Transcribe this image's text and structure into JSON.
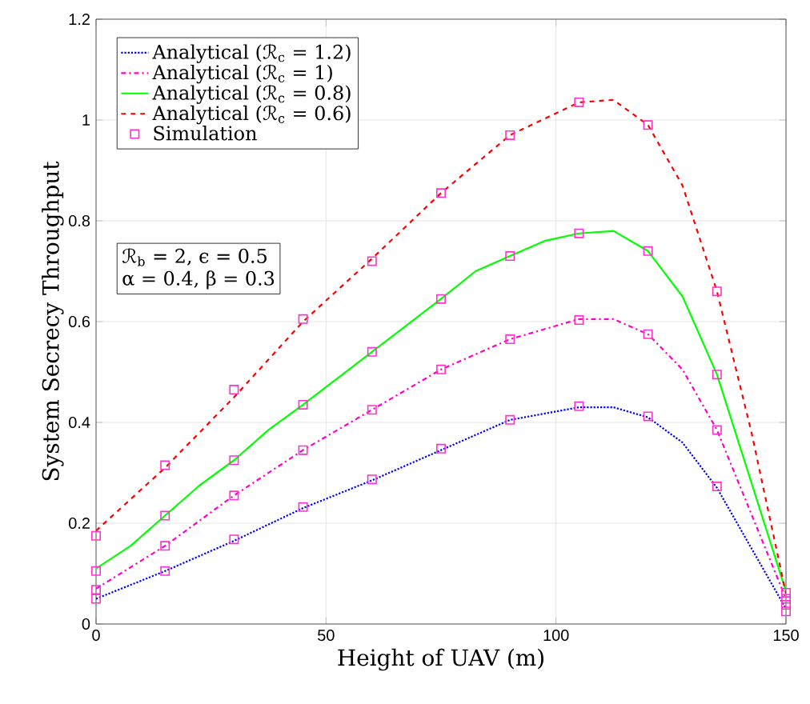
{
  "chart_data": {
    "type": "line",
    "xlabel": "Height of UAV (m)",
    "ylabel": "System Secrecy Throughput",
    "xlim": [
      0,
      150
    ],
    "xticks": [
      0,
      50,
      100,
      150
    ],
    "ylim": [
      0,
      1.2
    ],
    "yticks": [
      0,
      0.2,
      0.4,
      0.6,
      0.8,
      1,
      1.2
    ],
    "grid": true,
    "legend": "top left",
    "annotations": [
      "ℛ$_{b}$ = 2, ϵ = 0.5",
      "α = 0.4, β = 0.3"
    ],
    "series": [
      {
        "name": "Analytical (ℛ$_{c}$ = 1.2)",
        "color": "#0000ff",
        "line_style": "dotted",
        "x": [
          0,
          15,
          30,
          45,
          60,
          75,
          90,
          105,
          112.5,
          120,
          127.5,
          135,
          150
        ],
        "values": [
          0.05,
          0.105,
          0.165,
          0.23,
          0.285,
          0.345,
          0.405,
          0.43,
          0.43,
          0.41,
          0.36,
          0.27,
          0.03
        ]
      },
      {
        "name": "Analytical (ℛ$_{c}$ = 1)",
        "color": "#ff00cc",
        "line_style": "dashdot",
        "x": [
          0,
          15,
          30,
          45,
          60,
          75,
          90,
          105,
          112.5,
          120,
          127.5,
          135,
          150
        ],
        "values": [
          0.07,
          0.155,
          0.255,
          0.345,
          0.425,
          0.505,
          0.565,
          0.605,
          0.605,
          0.575,
          0.505,
          0.385,
          0.05
        ]
      },
      {
        "name": "Analytical (ℛ$_{c}$ = 0.8)",
        "color": "#00ff00",
        "line_style": "solid",
        "x": [
          0,
          7.5,
          15,
          22.5,
          30,
          37.5,
          45,
          60,
          75,
          82.5,
          90,
          97.5,
          105,
          112.5,
          120,
          127.5,
          135,
          150
        ],
        "values": [
          0.11,
          0.155,
          0.215,
          0.275,
          0.325,
          0.385,
          0.435,
          0.54,
          0.645,
          0.7,
          0.73,
          0.76,
          0.775,
          0.78,
          0.74,
          0.65,
          0.495,
          0.065
        ]
      },
      {
        "name": "Analytical (ℛ$_{c}$ = 0.6)",
        "color": "#ff0000",
        "line_style": "dashed",
        "x": [
          0,
          15,
          30,
          45,
          60,
          75,
          90,
          105,
          112.5,
          120,
          127.5,
          135,
          142.5,
          150
        ],
        "values": [
          0.185,
          0.31,
          0.45,
          0.6,
          0.725,
          0.855,
          0.97,
          1.035,
          1.04,
          0.99,
          0.87,
          0.66,
          0.38,
          0.06
        ]
      },
      {
        "name": "Simulation",
        "type": "scatter",
        "marker": "square",
        "color": "#ff33cc",
        "x": [
          0,
          15,
          30,
          45,
          60,
          75,
          90,
          105,
          120,
          135,
          150,
          0,
          15,
          30,
          45,
          60,
          75,
          90,
          105,
          120,
          135,
          150,
          0,
          15,
          30,
          45,
          60,
          75,
          90,
          105,
          120,
          135,
          150,
          0,
          15,
          30,
          45,
          60,
          75,
          90,
          105,
          120,
          135,
          150
        ],
        "values": [
          0.05,
          0.105,
          0.168,
          0.232,
          0.287,
          0.348,
          0.405,
          0.432,
          0.412,
          0.273,
          0.025,
          0.068,
          0.155,
          0.255,
          0.345,
          0.425,
          0.505,
          0.565,
          0.603,
          0.575,
          0.385,
          0.038,
          0.105,
          0.215,
          0.325,
          0.435,
          0.54,
          0.645,
          0.73,
          0.775,
          0.74,
          0.495,
          0.05,
          0.175,
          0.315,
          0.465,
          0.605,
          0.72,
          0.855,
          0.97,
          1.035,
          0.99,
          0.66,
          0.062
        ]
      }
    ]
  }
}
